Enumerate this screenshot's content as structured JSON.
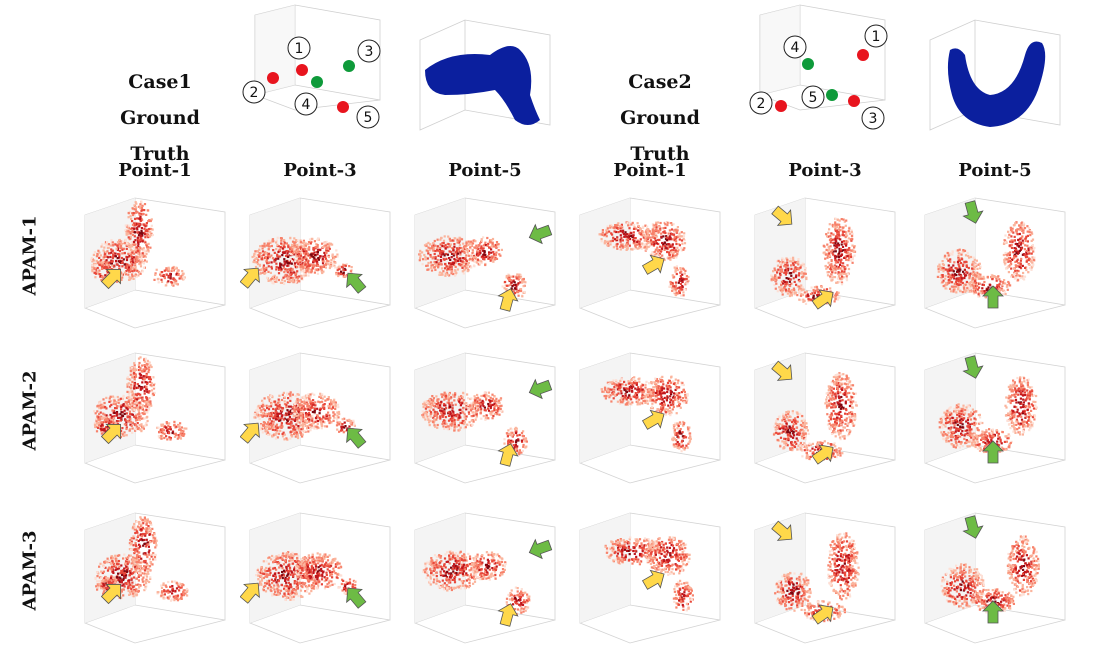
{
  "cases": [
    {
      "label": "Case1",
      "subtitle": "Ground Truth"
    },
    {
      "label": "Case2",
      "subtitle": "Ground Truth"
    }
  ],
  "markers": {
    "case1": [
      "1",
      "2",
      "3",
      "4",
      "5"
    ],
    "case2": [
      "1",
      "2",
      "3",
      "4",
      "5"
    ]
  },
  "columns": [
    "Point-1",
    "Point-3",
    "Point-5",
    "Point-1",
    "Point-3",
    "Point-5"
  ],
  "rows": [
    "APAM-1",
    "APAM-2",
    "APAM-3"
  ],
  "colors": {
    "red": "#e8141e",
    "green": "#0e9a3a",
    "blue": "#0b1f9e",
    "yellow": "#ffd84a",
    "arrow_green": "#6dbb45"
  }
}
